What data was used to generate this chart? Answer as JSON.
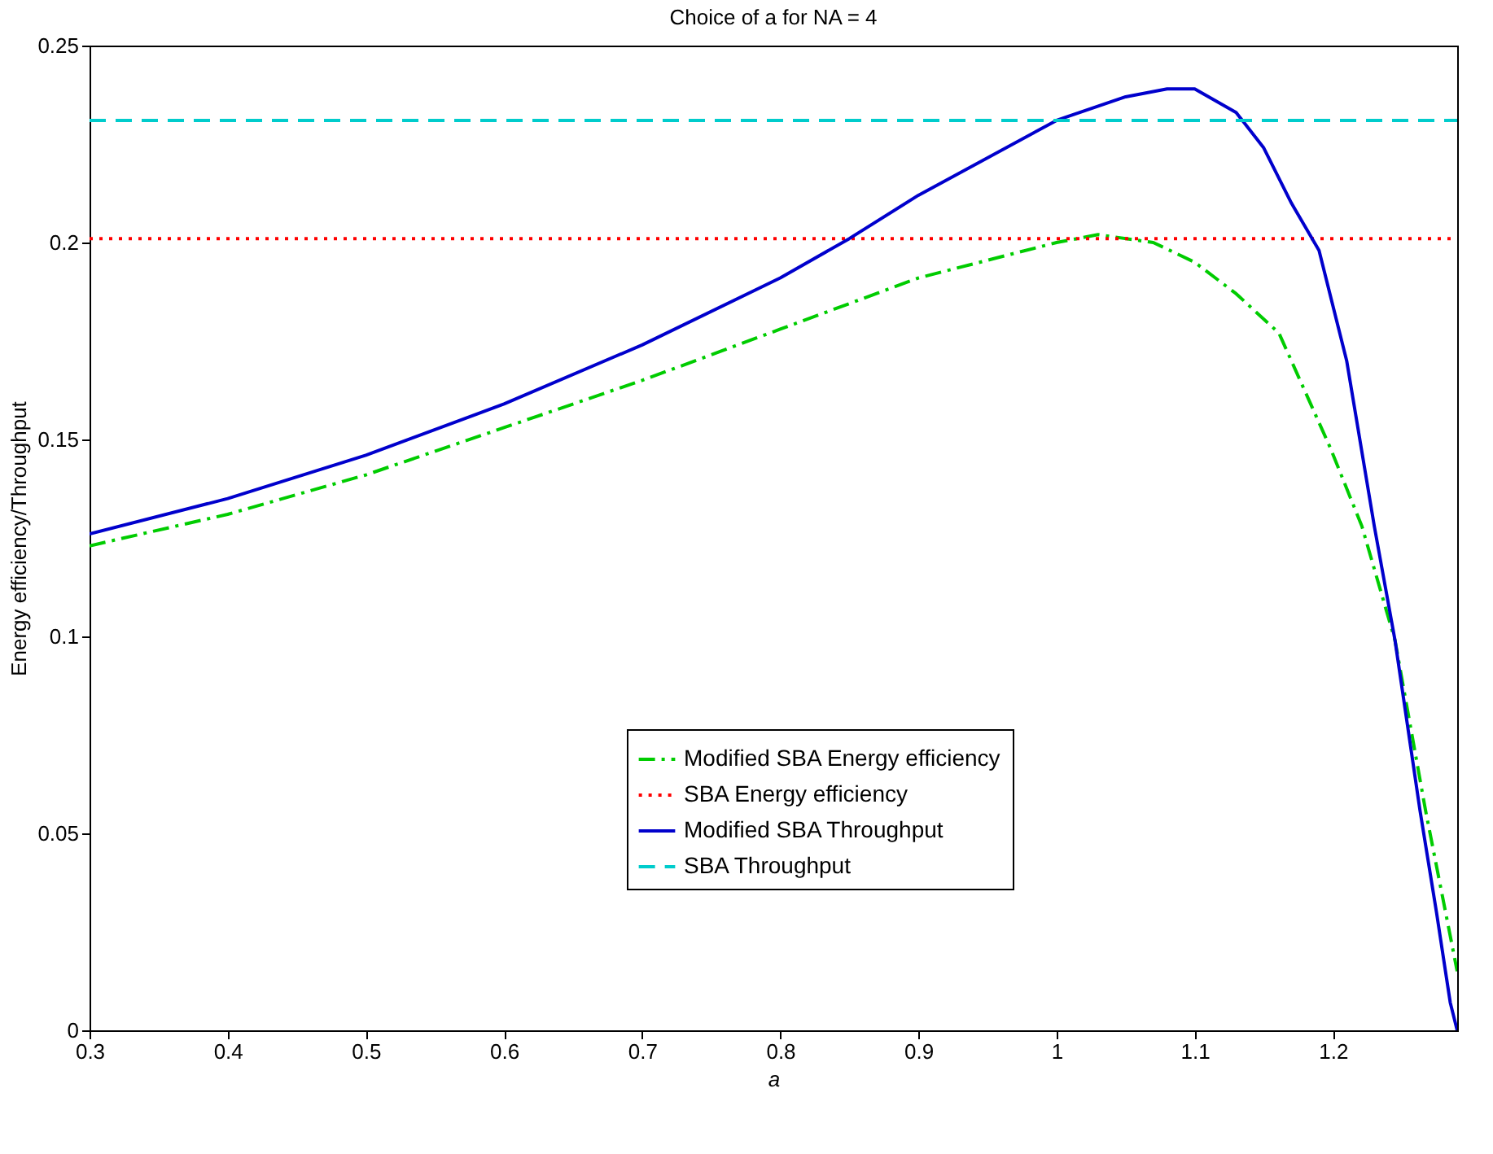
{
  "chart_data": {
    "type": "line",
    "title": "Choice of a for NA = 4",
    "xlabel": "a",
    "ylabel": "Energy efficiency/Throughput",
    "xlim": [
      0.3,
      1.29
    ],
    "xticks": [
      0.3,
      0.4,
      0.5,
      0.6,
      0.7,
      0.8,
      0.9,
      1,
      1.1,
      1.2
    ],
    "ylim": [
      0,
      0.25
    ],
    "yticks": [
      0,
      0.05,
      0.1,
      0.15,
      0.2,
      0.25
    ],
    "grid": false,
    "legend": "bottom",
    "marker": "none",
    "series": [
      {
        "name": "Modified SBA Energy efficiency",
        "color": "#00cc00",
        "line_style": "dashdot",
        "x": [
          0.3,
          0.4,
          0.5,
          0.6,
          0.7,
          0.8,
          0.9,
          1.0,
          1.03,
          1.07,
          1.1,
          1.13,
          1.161,
          1.198,
          1.221,
          1.245,
          1.267,
          1.29
        ],
        "values": [
          0.123,
          0.131,
          0.141,
          0.153,
          0.165,
          0.178,
          0.191,
          0.2,
          0.202,
          0.2,
          0.195,
          0.187,
          0.177,
          0.148,
          0.128,
          0.099,
          0.056,
          0.015
        ]
      },
      {
        "name": "SBA Energy efficiency",
        "color": "#ff0000",
        "line_style": "dotted",
        "x": [
          0.3,
          1.29
        ],
        "values": [
          0.201,
          0.201
        ]
      },
      {
        "name": "Modified SBA Throughput",
        "color": "#0000cc",
        "line_style": "solid",
        "x": [
          0.3,
          0.4,
          0.5,
          0.6,
          0.7,
          0.8,
          0.85,
          0.9,
          1.0,
          1.05,
          1.08,
          1.1,
          1.13,
          1.15,
          1.17,
          1.19,
          1.21,
          1.23,
          1.245,
          1.263,
          1.275,
          1.285,
          1.29
        ],
        "values": [
          0.126,
          0.135,
          0.146,
          0.159,
          0.174,
          0.191,
          0.201,
          0.212,
          0.231,
          0.237,
          0.239,
          0.239,
          0.233,
          0.224,
          0.21,
          0.198,
          0.17,
          0.128,
          0.099,
          0.056,
          0.03,
          0.007,
          0
        ]
      },
      {
        "name": "SBA Throughput",
        "color": "#00cccc",
        "line_style": "dashed",
        "x": [
          0.3,
          1.29
        ],
        "values": [
          0.231,
          0.231
        ]
      }
    ]
  }
}
